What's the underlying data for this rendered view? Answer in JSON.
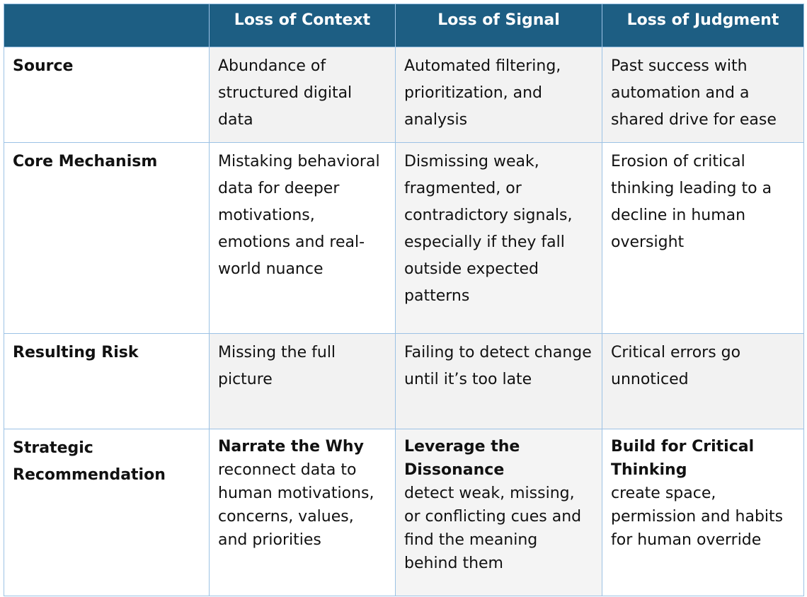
{
  "table": {
    "columns": [
      "Loss of Context",
      "Loss of Signal",
      "Loss of Judgment"
    ],
    "rows": [
      {
        "label": "Source",
        "cells": [
          "Abundance of structured digital data",
          "Automated filtering, prioritization, and analysis",
          "Past success with automation and a shared drive for ease"
        ]
      },
      {
        "label": "Core Mechanism",
        "cells": [
          "Mistaking behavioral data for deeper motivations, emotions and real-world nuance",
          "Dismissing weak, fragmented, or contradictory signals, especially if they fall outside expected patterns",
          "Erosion of critical thinking leading to a decline in human oversight"
        ]
      },
      {
        "label": "Resulting Risk",
        "cells": [
          "Missing the full picture",
          "Failing to detect change until it’s too late",
          "Critical errors go unnoticed"
        ]
      },
      {
        "label": "Strategic Recommendation",
        "cells": [
          {
            "title": "Narrate the Why",
            "text": "reconnect data to human motivations, concerns, values, and priorities"
          },
          {
            "title": "Leverage the Dissonance",
            "text": "detect weak, missing, or conflicting cues and find the meaning behind them"
          },
          {
            "title": "Build for Critical Thinking",
            "text": "create space, permission and habits for human override"
          }
        ]
      }
    ]
  }
}
